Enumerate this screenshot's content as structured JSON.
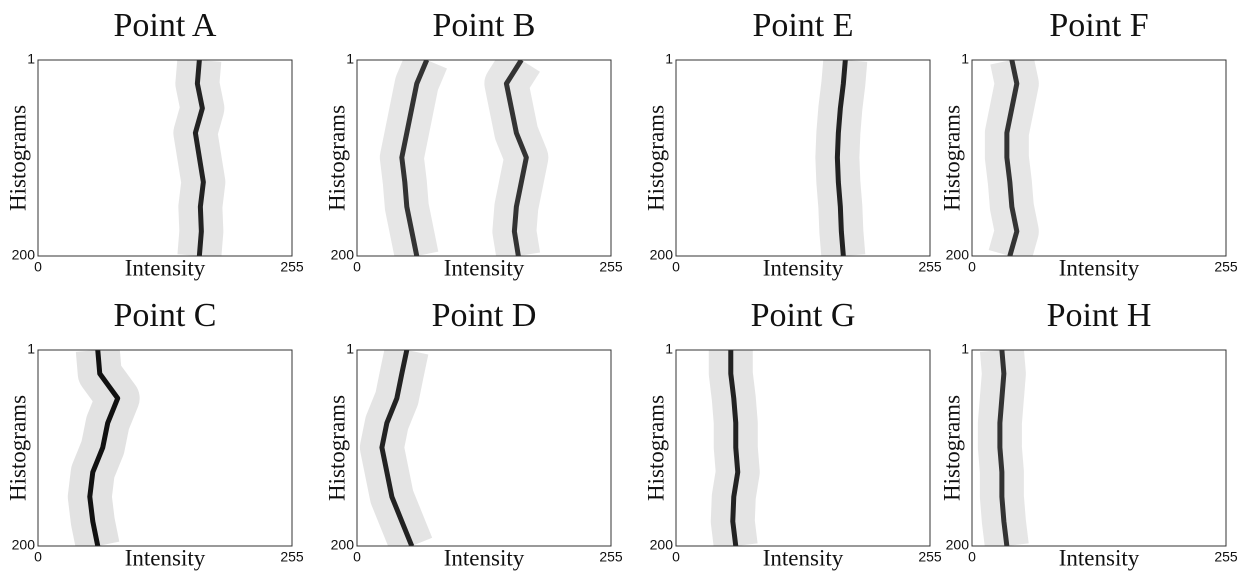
{
  "chart_data": [
    {
      "type": "line",
      "title": "Point A",
      "xlabel": "Intensity",
      "ylabel": "Histograms",
      "xlim": [
        0,
        255
      ],
      "ylim": [
        1,
        200
      ],
      "xticks": [
        0,
        255
      ],
      "yticks": [
        1,
        200
      ],
      "rows": [
        1,
        25,
        50,
        75,
        100,
        125,
        150,
        175,
        200
      ],
      "series": [
        {
          "color": "#222222",
          "values": [
            162,
            160,
            165,
            158,
            162,
            166,
            163,
            164,
            162
          ]
        }
      ]
    },
    {
      "type": "line",
      "title": "Point B",
      "xlabel": "Intensity",
      "ylabel": "Histograms",
      "xlim": [
        0,
        255
      ],
      "ylim": [
        1,
        200
      ],
      "xticks": [
        0,
        255
      ],
      "yticks": [
        1,
        200
      ],
      "rows": [
        1,
        25,
        50,
        75,
        100,
        125,
        150,
        175,
        200
      ],
      "series": [
        {
          "color": "#333333",
          "values": [
            70,
            60,
            55,
            50,
            45,
            48,
            50,
            55,
            60
          ]
        },
        {
          "color": "#333333",
          "values": [
            165,
            150,
            155,
            160,
            170,
            165,
            160,
            158,
            162
          ]
        }
      ]
    },
    {
      "type": "line",
      "title": "Point E",
      "xlabel": "Intensity",
      "ylabel": "Histograms",
      "xlim": [
        0,
        255
      ],
      "ylim": [
        1,
        200
      ],
      "xticks": [
        0,
        255
      ],
      "yticks": [
        1,
        200
      ],
      "rows": [
        1,
        25,
        50,
        75,
        100,
        125,
        150,
        175,
        200
      ],
      "series": [
        {
          "color": "#222222",
          "values": [
            170,
            168,
            165,
            163,
            162,
            163,
            165,
            166,
            168
          ]
        }
      ]
    },
    {
      "type": "line",
      "title": "Point F",
      "xlabel": "Intensity",
      "ylabel": "Histograms",
      "xlim": [
        0,
        255
      ],
      "ylim": [
        1,
        200
      ],
      "xticks": [
        0,
        255
      ],
      "yticks": [
        1,
        200
      ],
      "rows": [
        1,
        25,
        50,
        75,
        100,
        125,
        150,
        175,
        200
      ],
      "series": [
        {
          "color": "#333333",
          "values": [
            40,
            45,
            40,
            35,
            35,
            38,
            40,
            45,
            38
          ]
        }
      ]
    },
    {
      "type": "line",
      "title": "Point C",
      "xlabel": "Intensity",
      "ylabel": "Histograms",
      "xlim": [
        0,
        255
      ],
      "ylim": [
        1,
        200
      ],
      "xticks": [
        0,
        255
      ],
      "yticks": [
        1,
        200
      ],
      "rows": [
        1,
        25,
        50,
        75,
        100,
        125,
        150,
        175,
        200
      ],
      "series": [
        {
          "color": "#111111",
          "values": [
            60,
            62,
            80,
            70,
            65,
            55,
            52,
            55,
            60
          ]
        }
      ]
    },
    {
      "type": "line",
      "title": "Point D",
      "xlabel": "Intensity",
      "ylabel": "Histograms",
      "xlim": [
        0,
        255
      ],
      "ylim": [
        1,
        200
      ],
      "xticks": [
        0,
        255
      ],
      "yticks": [
        1,
        200
      ],
      "rows": [
        1,
        25,
        50,
        75,
        100,
        125,
        150,
        175,
        200
      ],
      "series": [
        {
          "color": "#222222",
          "values": [
            50,
            45,
            40,
            30,
            25,
            30,
            35,
            45,
            55
          ]
        }
      ]
    },
    {
      "type": "line",
      "title": "Point G",
      "xlabel": "Intensity",
      "ylabel": "Histograms",
      "xlim": [
        0,
        255
      ],
      "ylim": [
        1,
        200
      ],
      "xticks": [
        0,
        255
      ],
      "yticks": [
        1,
        200
      ],
      "rows": [
        1,
        25,
        50,
        75,
        100,
        125,
        150,
        175,
        200
      ],
      "series": [
        {
          "color": "#222222",
          "values": [
            55,
            55,
            58,
            60,
            60,
            62,
            58,
            57,
            60
          ]
        }
      ]
    },
    {
      "type": "line",
      "title": "Point H",
      "xlabel": "Intensity",
      "ylabel": "Histograms",
      "xlim": [
        0,
        255
      ],
      "ylim": [
        1,
        200
      ],
      "xticks": [
        0,
        255
      ],
      "yticks": [
        1,
        200
      ],
      "rows": [
        1,
        25,
        50,
        75,
        100,
        125,
        150,
        175,
        200
      ],
      "series": [
        {
          "color": "#333333",
          "values": [
            30,
            32,
            30,
            28,
            28,
            30,
            30,
            32,
            35
          ]
        }
      ]
    }
  ]
}
